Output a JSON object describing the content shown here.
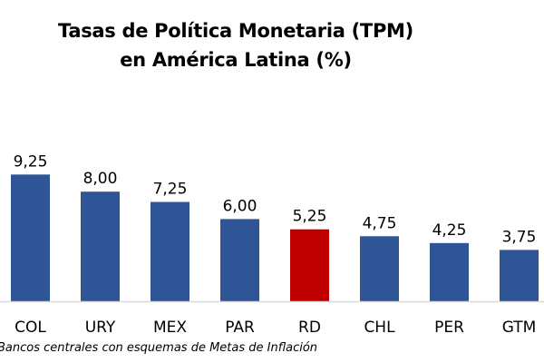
{
  "chart_data": {
    "type": "bar",
    "title": [
      "Tasas de Política Monetaria (TPM)",
      "en América Latina (%)"
    ],
    "categories": [
      "COL",
      "URY",
      "MEX",
      "PAR",
      "RD",
      "CHL",
      "PER",
      "GTM"
    ],
    "values": [
      9.25,
      8.0,
      7.25,
      6.0,
      5.25,
      4.75,
      4.25,
      3.75
    ],
    "data_labels": [
      "9,25",
      "8,00",
      "7,25",
      "6,00",
      "5,25",
      "4,75",
      "4,25",
      "3,75"
    ],
    "colors": [
      "#2F5597",
      "#2F5597",
      "#2F5597",
      "#2F5597",
      "#C00000",
      "#2F5597",
      "#2F5597",
      "#2F5597"
    ],
    "highlight": "RD",
    "xlabel": "",
    "ylabel": "",
    "ylim": [
      0,
      10
    ],
    "grid": false,
    "legend": "none",
    "footnote": "Bancos centrales con esquemas de Metas de Inflación"
  }
}
